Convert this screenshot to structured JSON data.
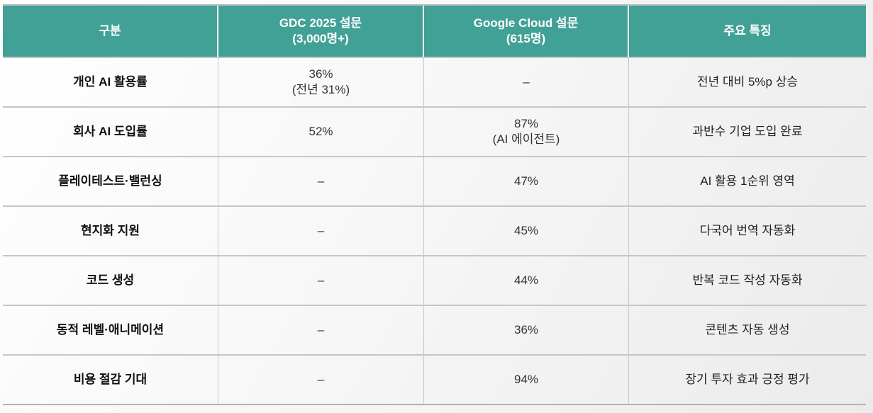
{
  "colors": {
    "header_bg": "#41A196",
    "header_text": "#ffffff",
    "row_border": "#c6c6c6",
    "column_border": "#c9c9c9",
    "body_text": "#333333"
  },
  "table": {
    "columns": [
      {
        "label": "구분",
        "sub": ""
      },
      {
        "label": "GDC 2025 설문",
        "sub": "(3,000명+)"
      },
      {
        "label": "Google Cloud 설문",
        "sub": "(615명)"
      },
      {
        "label": "주요 특징",
        "sub": ""
      }
    ],
    "rows": [
      {
        "category": "개인 AI 활용률",
        "gdc": {
          "main": "36%",
          "sub": "(전년 31%)"
        },
        "cloud": {
          "main": "–",
          "sub": ""
        },
        "feature": "전년 대비 5%p 상승"
      },
      {
        "category": "회사 AI 도입률",
        "gdc": {
          "main": "52%",
          "sub": ""
        },
        "cloud": {
          "main": "87%",
          "sub": "(AI 에이전트)"
        },
        "feature": "과반수 기업 도입 완료"
      },
      {
        "category": "플레이테스트·밸런싱",
        "gdc": {
          "main": "–",
          "sub": ""
        },
        "cloud": {
          "main": "47%",
          "sub": ""
        },
        "feature": "AI 활용 1순위 영역"
      },
      {
        "category": "현지화 지원",
        "gdc": {
          "main": "–",
          "sub": ""
        },
        "cloud": {
          "main": "45%",
          "sub": ""
        },
        "feature": "다국어 번역 자동화"
      },
      {
        "category": "코드 생성",
        "gdc": {
          "main": "–",
          "sub": ""
        },
        "cloud": {
          "main": "44%",
          "sub": ""
        },
        "feature": "반복 코드 작성 자동화"
      },
      {
        "category": "동적 레벨·애니메이션",
        "gdc": {
          "main": "–",
          "sub": ""
        },
        "cloud": {
          "main": "36%",
          "sub": ""
        },
        "feature": "콘텐츠 자동 생성"
      },
      {
        "category": "비용 절감 기대",
        "gdc": {
          "main": "–",
          "sub": ""
        },
        "cloud": {
          "main": "94%",
          "sub": ""
        },
        "feature": "장기 투자 효과 긍정 평가"
      }
    ]
  },
  "chart_data": {
    "type": "table",
    "columns": [
      "구분",
      "GDC 2025 설문 (3,000명+)",
      "Google Cloud 설문 (615명)",
      "주요 특징"
    ],
    "rows": [
      [
        "개인 AI 활용률",
        "36% (전년 31%)",
        "–",
        "전년 대비 5%p 상승"
      ],
      [
        "회사 AI 도입률",
        "52%",
        "87% (AI 에이전트)",
        "과반수 기업 도입 완료"
      ],
      [
        "플레이테스트·밸런싱",
        "–",
        "47%",
        "AI 활용 1순위 영역"
      ],
      [
        "현지화 지원",
        "–",
        "45%",
        "다국어 번역 자동화"
      ],
      [
        "코드 생성",
        "–",
        "44%",
        "반복 코드 작성 자동화"
      ],
      [
        "동적 레벨·애니메이션",
        "–",
        "36%",
        "콘텐츠 자동 생성"
      ],
      [
        "비용 절감 기대",
        "–",
        "94%",
        "장기 투자 효과 긍정 평가"
      ]
    ]
  }
}
